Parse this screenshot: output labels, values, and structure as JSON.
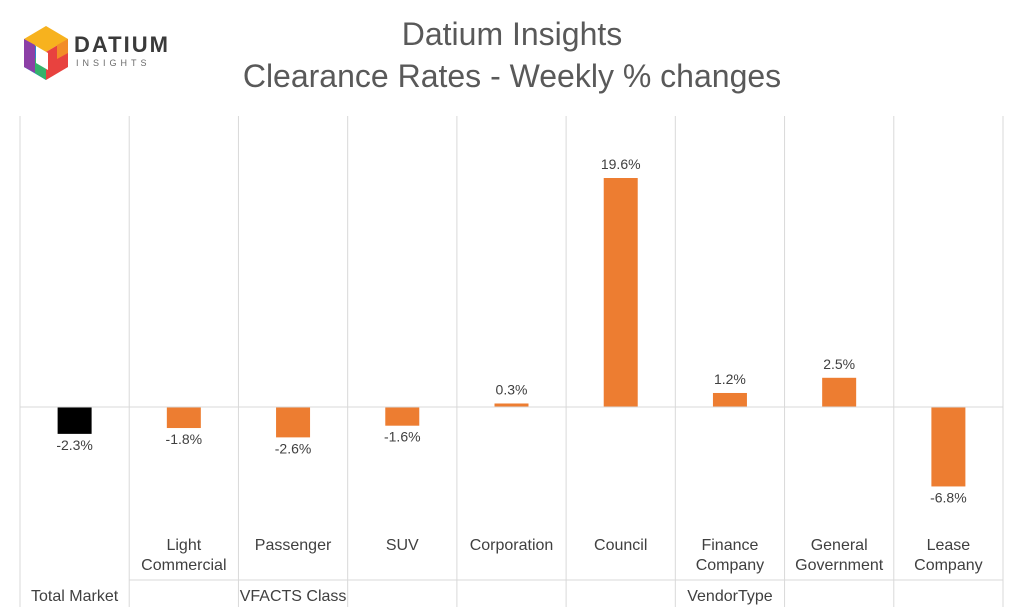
{
  "header": {
    "title_line1": "Datium Insights",
    "title_line2": "Clearance Rates - Weekly % changes"
  },
  "logo": {
    "name": "DATIUM",
    "sub": "INSIGHTS",
    "icon": "datium-cube-icon"
  },
  "chart_data": {
    "type": "bar",
    "categories": [
      "Total Market",
      "Light Commercial",
      "Passenger",
      "SUV",
      "Corporation",
      "Council",
      "Finance Company",
      "General Government",
      "Lease Company"
    ],
    "category_lines": [
      [],
      [
        "Light",
        "Commercial"
      ],
      [
        "Passenger"
      ],
      [
        "SUV"
      ],
      [
        "Corporation"
      ],
      [
        "Council"
      ],
      [
        "Finance",
        "Company"
      ],
      [
        "General",
        "Government"
      ],
      [
        "Lease",
        "Company"
      ]
    ],
    "values": [
      -2.3,
      -1.8,
      -2.6,
      -1.6,
      0.3,
      19.6,
      1.2,
      2.5,
      -6.8
    ],
    "data_labels": [
      "-2.3%",
      "-1.8%",
      "-2.6%",
      "-1.6%",
      "0.3%",
      "19.6%",
      "1.2%",
      "2.5%",
      "-6.8%"
    ],
    "groups": [
      {
        "label": "Total Market",
        "start": 0,
        "end": 0
      },
      {
        "label": "VFACTS Class",
        "start": 1,
        "end": 3
      },
      {
        "label": "VendorType",
        "start": 4,
        "end": 8
      }
    ],
    "bar_colors": [
      "#000000",
      "#ed7d31",
      "#ed7d31",
      "#ed7d31",
      "#ed7d31",
      "#ed7d31",
      "#ed7d31",
      "#ed7d31",
      "#ed7d31"
    ],
    "title": "Clearance Rates - Weekly % changes",
    "grid": false
  }
}
